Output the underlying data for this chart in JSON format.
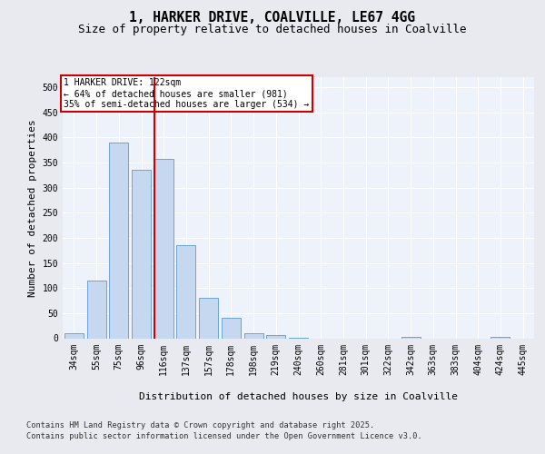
{
  "title_line1": "1, HARKER DRIVE, COALVILLE, LE67 4GG",
  "title_line2": "Size of property relative to detached houses in Coalville",
  "xlabel": "Distribution of detached houses by size in Coalville",
  "ylabel": "Number of detached properties",
  "categories": [
    "34sqm",
    "55sqm",
    "75sqm",
    "96sqm",
    "116sqm",
    "137sqm",
    "157sqm",
    "178sqm",
    "198sqm",
    "219sqm",
    "240sqm",
    "260sqm",
    "281sqm",
    "301sqm",
    "322sqm",
    "342sqm",
    "363sqm",
    "383sqm",
    "404sqm",
    "424sqm",
    "445sqm"
  ],
  "values": [
    10,
    115,
    390,
    335,
    358,
    185,
    80,
    40,
    10,
    6,
    1,
    0,
    0,
    0,
    0,
    2,
    0,
    0,
    0,
    2,
    0
  ],
  "bar_color": "#c5d8f0",
  "bar_edge_color": "#5b9bd5",
  "vline_color": "#cc0000",
  "vline_position": 3.57,
  "annotation_box_text": "1 HARKER DRIVE: 122sqm\n← 64% of detached houses are smaller (981)\n35% of semi-detached houses are larger (534) →",
  "annotation_box_color": "#cc0000",
  "annotation_box_fill": "#ffffff",
  "annotation_font_size": 7.0,
  "ylim": [
    0,
    520
  ],
  "yticks": [
    0,
    50,
    100,
    150,
    200,
    250,
    300,
    350,
    400,
    450,
    500
  ],
  "footer_line1": "Contains HM Land Registry data © Crown copyright and database right 2025.",
  "footer_line2": "Contains public sector information licensed under the Open Government Licence v3.0.",
  "bg_color": "#e8eaf0",
  "plot_bg_color": "#eef2fa",
  "grid_color": "#ffffff",
  "title_fontsize": 10.5,
  "subtitle_fontsize": 9.0,
  "axis_label_fontsize": 8.0,
  "tick_fontsize": 7.0,
  "footer_fontsize": 6.2
}
